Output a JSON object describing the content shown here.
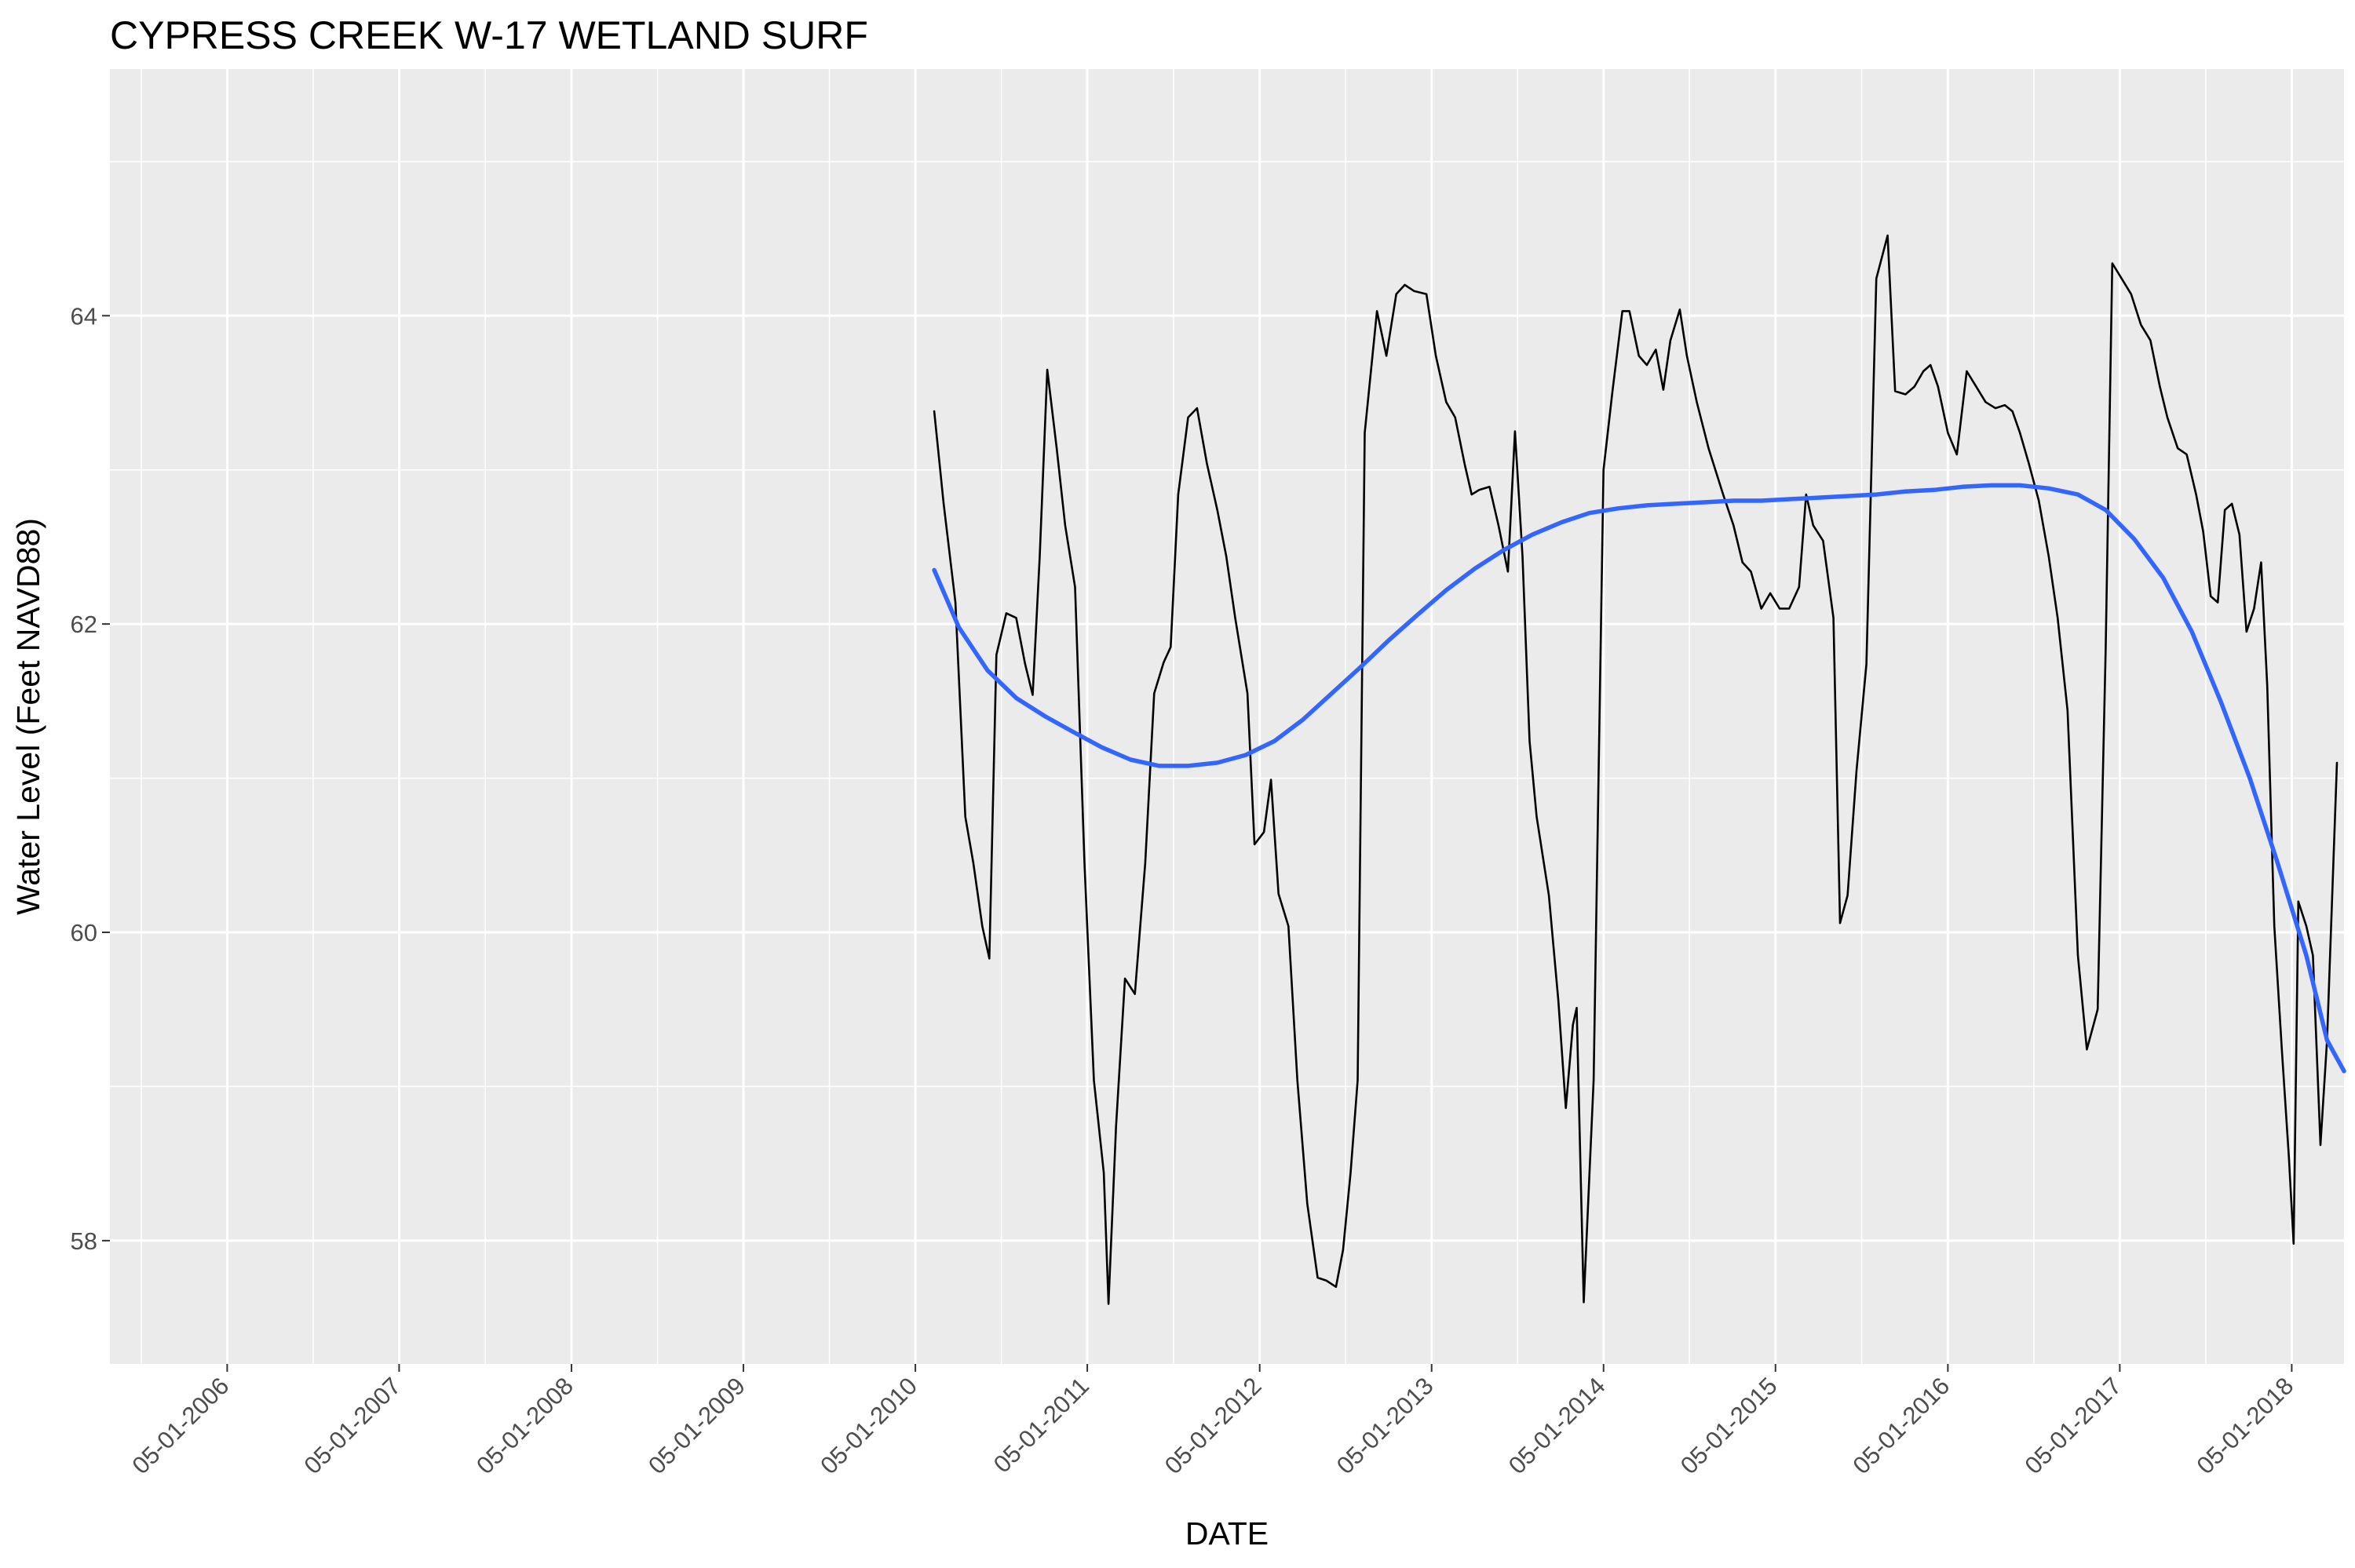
{
  "chart_data": {
    "type": "line",
    "title": "CYPRESS CREEK W-17 WETLAND SURF",
    "xlabel": "DATE",
    "ylabel": "Water Level (Feet NAVD88)",
    "xlim": [
      "2005-08-25",
      "2018-08-20"
    ],
    "ylim": [
      57.2,
      65.6
    ],
    "x_ticks": [
      "05-01-2006",
      "05-01-2007",
      "05-01-2008",
      "05-01-2009",
      "05-01-2010",
      "05-01-2011",
      "05-01-2012",
      "05-01-2013",
      "05-01-2014",
      "05-01-2015",
      "05-01-2016",
      "05-01-2017",
      "05-01-2018"
    ],
    "y_ticks": [
      58,
      60,
      62,
      64
    ],
    "grid": true,
    "legend": "none",
    "colors": {
      "panel": "#EBEBEB",
      "grid": "#FFFFFF",
      "series": "#000000",
      "smooth": "#3366FF",
      "tick_label": "#4D4D4D"
    },
    "series": [
      {
        "style": "line",
        "points": [
          [
            "2010-06-10",
            63.38
          ],
          [
            "2010-06-30",
            62.78
          ],
          [
            "2010-07-25",
            62.14
          ],
          [
            "2010-08-15",
            60.75
          ],
          [
            "2010-09-01",
            60.45
          ],
          [
            "2010-09-20",
            60.04
          ],
          [
            "2010-10-05",
            59.83
          ],
          [
            "2010-10-20",
            61.8
          ],
          [
            "2010-11-10",
            62.07
          ],
          [
            "2010-12-01",
            62.04
          ],
          [
            "2010-12-20",
            61.74
          ],
          [
            "2011-01-05",
            61.54
          ],
          [
            "2011-01-20",
            62.44
          ],
          [
            "2011-02-05",
            63.65
          ],
          [
            "2011-02-25",
            63.14
          ],
          [
            "2011-03-15",
            62.64
          ],
          [
            "2011-04-05",
            62.24
          ],
          [
            "2011-04-25",
            60.45
          ],
          [
            "2011-05-15",
            59.04
          ],
          [
            "2011-06-05",
            58.44
          ],
          [
            "2011-06-15",
            57.59
          ],
          [
            "2011-07-01",
            58.74
          ],
          [
            "2011-07-20",
            59.7
          ],
          [
            "2011-08-10",
            59.6
          ],
          [
            "2011-09-01",
            60.45
          ],
          [
            "2011-09-20",
            61.55
          ],
          [
            "2011-10-10",
            61.75
          ],
          [
            "2011-10-25",
            61.85
          ],
          [
            "2011-11-10",
            62.84
          ],
          [
            "2011-12-01",
            63.34
          ],
          [
            "2011-12-20",
            63.4
          ],
          [
            "2012-01-10",
            63.04
          ],
          [
            "2012-02-01",
            62.74
          ],
          [
            "2012-02-20",
            62.44
          ],
          [
            "2012-03-10",
            62.04
          ],
          [
            "2012-04-05",
            61.55
          ],
          [
            "2012-04-20",
            60.57
          ],
          [
            "2012-05-10",
            60.65
          ],
          [
            "2012-05-25",
            60.99
          ],
          [
            "2012-06-10",
            60.25
          ],
          [
            "2012-07-01",
            60.04
          ],
          [
            "2012-07-20",
            59.04
          ],
          [
            "2012-08-10",
            58.24
          ],
          [
            "2012-09-01",
            57.76
          ],
          [
            "2012-09-20",
            57.74
          ],
          [
            "2012-10-10",
            57.7
          ],
          [
            "2012-10-25",
            57.94
          ],
          [
            "2012-11-10",
            58.44
          ],
          [
            "2012-11-25",
            59.04
          ],
          [
            "2012-12-10",
            63.24
          ],
          [
            "2013-01-05",
            64.03
          ],
          [
            "2013-01-25",
            63.74
          ],
          [
            "2013-02-15",
            64.14
          ],
          [
            "2013-03-05",
            64.2
          ],
          [
            "2013-03-25",
            64.16
          ],
          [
            "2013-04-20",
            64.14
          ],
          [
            "2013-05-10",
            63.74
          ],
          [
            "2013-06-01",
            63.44
          ],
          [
            "2013-06-20",
            63.34
          ],
          [
            "2013-07-10",
            63.04
          ],
          [
            "2013-07-25",
            62.84
          ],
          [
            "2013-08-10",
            62.87
          ],
          [
            "2013-09-01",
            62.89
          ],
          [
            "2013-09-20",
            62.64
          ],
          [
            "2013-10-10",
            62.34
          ],
          [
            "2013-10-25",
            63.25
          ],
          [
            "2013-11-10",
            62.44
          ],
          [
            "2013-11-25",
            61.24
          ],
          [
            "2013-12-10",
            60.75
          ],
          [
            "2014-01-05",
            60.24
          ],
          [
            "2014-01-25",
            59.56
          ],
          [
            "2014-02-10",
            58.86
          ],
          [
            "2014-02-25",
            59.4
          ],
          [
            "2014-03-05",
            59.51
          ],
          [
            "2014-03-20",
            57.6
          ],
          [
            "2014-04-10",
            59.04
          ],
          [
            "2014-05-01",
            63.0
          ],
          [
            "2014-05-20",
            63.51
          ],
          [
            "2014-06-10",
            64.03
          ],
          [
            "2014-06-25",
            64.03
          ],
          [
            "2014-07-15",
            63.74
          ],
          [
            "2014-08-01",
            63.68
          ],
          [
            "2014-08-20",
            63.78
          ],
          [
            "2014-09-05",
            63.52
          ],
          [
            "2014-09-20",
            63.84
          ],
          [
            "2014-10-10",
            64.04
          ],
          [
            "2014-10-25",
            63.74
          ],
          [
            "2014-11-15",
            63.44
          ],
          [
            "2014-12-10",
            63.14
          ],
          [
            "2015-01-10",
            62.84
          ],
          [
            "2015-02-01",
            62.64
          ],
          [
            "2015-02-20",
            62.4
          ],
          [
            "2015-03-10",
            62.34
          ],
          [
            "2015-04-01",
            62.1
          ],
          [
            "2015-04-20",
            62.2
          ],
          [
            "2015-05-10",
            62.1
          ],
          [
            "2015-05-30",
            62.1
          ],
          [
            "2015-06-20",
            62.24
          ],
          [
            "2015-07-05",
            62.84
          ],
          [
            "2015-07-20",
            62.64
          ],
          [
            "2015-08-10",
            62.54
          ],
          [
            "2015-09-01",
            62.04
          ],
          [
            "2015-09-15",
            60.06
          ],
          [
            "2015-10-01",
            60.24
          ],
          [
            "2015-10-20",
            61.05
          ],
          [
            "2015-11-10",
            61.74
          ],
          [
            "2015-12-01",
            64.24
          ],
          [
            "2015-12-25",
            64.52
          ],
          [
            "2016-01-10",
            63.51
          ],
          [
            "2016-02-01",
            63.49
          ],
          [
            "2016-02-20",
            63.54
          ],
          [
            "2016-03-10",
            63.64
          ],
          [
            "2016-03-25",
            63.68
          ],
          [
            "2016-04-10",
            63.54
          ],
          [
            "2016-05-01",
            63.24
          ],
          [
            "2016-05-20",
            63.1
          ],
          [
            "2016-06-10",
            63.64
          ],
          [
            "2016-06-30",
            63.54
          ],
          [
            "2016-07-20",
            63.44
          ],
          [
            "2016-08-10",
            63.4
          ],
          [
            "2016-08-30",
            63.42
          ],
          [
            "2016-09-15",
            63.38
          ],
          [
            "2016-10-01",
            63.24
          ],
          [
            "2016-10-20",
            63.04
          ],
          [
            "2016-11-10",
            62.8
          ],
          [
            "2016-12-01",
            62.44
          ],
          [
            "2016-12-20",
            62.04
          ],
          [
            "2017-01-10",
            61.44
          ],
          [
            "2017-02-01",
            59.85
          ],
          [
            "2017-02-20",
            59.24
          ],
          [
            "2017-03-15",
            59.5
          ],
          [
            "2017-04-01",
            61.84
          ],
          [
            "2017-04-15",
            64.34
          ],
          [
            "2017-05-05",
            64.24
          ],
          [
            "2017-05-25",
            64.14
          ],
          [
            "2017-06-15",
            63.94
          ],
          [
            "2017-07-05",
            63.84
          ],
          [
            "2017-07-25",
            63.54
          ],
          [
            "2017-08-10",
            63.34
          ],
          [
            "2017-09-01",
            63.14
          ],
          [
            "2017-09-20",
            63.1
          ],
          [
            "2017-10-10",
            62.84
          ],
          [
            "2017-10-25",
            62.6
          ],
          [
            "2017-11-10",
            62.18
          ],
          [
            "2017-11-25",
            62.14
          ],
          [
            "2017-12-10",
            62.74
          ],
          [
            "2017-12-25",
            62.78
          ],
          [
            "2018-01-10",
            62.58
          ],
          [
            "2018-01-25",
            61.95
          ],
          [
            "2018-02-10",
            62.1
          ],
          [
            "2018-02-25",
            62.4
          ],
          [
            "2018-03-10",
            61.6
          ],
          [
            "2018-03-25",
            60.04
          ],
          [
            "2018-04-10",
            59.24
          ],
          [
            "2018-04-25",
            58.54
          ],
          [
            "2018-05-05",
            57.98
          ],
          [
            "2018-05-15",
            60.2
          ],
          [
            "2018-06-01",
            60.04
          ],
          [
            "2018-06-15",
            59.85
          ],
          [
            "2018-07-01",
            58.62
          ],
          [
            "2018-07-15",
            59.3
          ],
          [
            "2018-08-05",
            61.1
          ]
        ]
      },
      {
        "style": "smooth",
        "points": [
          [
            "2010-06-10",
            62.35
          ],
          [
            "2010-08-01",
            61.98
          ],
          [
            "2010-10-01",
            61.7
          ],
          [
            "2010-12-01",
            61.52
          ],
          [
            "2011-02-01",
            61.4
          ],
          [
            "2011-04-01",
            61.3
          ],
          [
            "2011-06-01",
            61.2
          ],
          [
            "2011-08-01",
            61.12
          ],
          [
            "2011-10-01",
            61.08
          ],
          [
            "2011-12-01",
            61.08
          ],
          [
            "2012-02-01",
            61.1
          ],
          [
            "2012-04-01",
            61.15
          ],
          [
            "2012-06-01",
            61.24
          ],
          [
            "2012-08-01",
            61.38
          ],
          [
            "2012-10-01",
            61.55
          ],
          [
            "2012-12-01",
            61.72
          ],
          [
            "2013-02-01",
            61.9
          ],
          [
            "2013-04-01",
            62.06
          ],
          [
            "2013-06-01",
            62.22
          ],
          [
            "2013-08-01",
            62.36
          ],
          [
            "2013-10-01",
            62.48
          ],
          [
            "2013-12-01",
            62.58
          ],
          [
            "2014-02-01",
            62.66
          ],
          [
            "2014-04-01",
            62.72
          ],
          [
            "2014-06-01",
            62.75
          ],
          [
            "2014-08-01",
            62.77
          ],
          [
            "2014-10-01",
            62.78
          ],
          [
            "2014-12-01",
            62.79
          ],
          [
            "2015-02-01",
            62.8
          ],
          [
            "2015-04-01",
            62.8
          ],
          [
            "2015-06-01",
            62.81
          ],
          [
            "2015-08-01",
            62.82
          ],
          [
            "2015-10-01",
            62.83
          ],
          [
            "2015-12-01",
            62.84
          ],
          [
            "2016-02-01",
            62.86
          ],
          [
            "2016-04-01",
            62.87
          ],
          [
            "2016-06-01",
            62.89
          ],
          [
            "2016-08-01",
            62.9
          ],
          [
            "2016-10-01",
            62.9
          ],
          [
            "2016-12-01",
            62.88
          ],
          [
            "2017-02-01",
            62.84
          ],
          [
            "2017-04-01",
            62.74
          ],
          [
            "2017-06-01",
            62.55
          ],
          [
            "2017-08-01",
            62.3
          ],
          [
            "2017-10-01",
            61.95
          ],
          [
            "2017-12-01",
            61.5
          ],
          [
            "2018-02-01",
            61.0
          ],
          [
            "2018-04-01",
            60.45
          ],
          [
            "2018-06-01",
            59.85
          ],
          [
            "2018-07-15",
            59.3
          ],
          [
            "2018-08-20",
            59.1
          ]
        ]
      }
    ]
  }
}
